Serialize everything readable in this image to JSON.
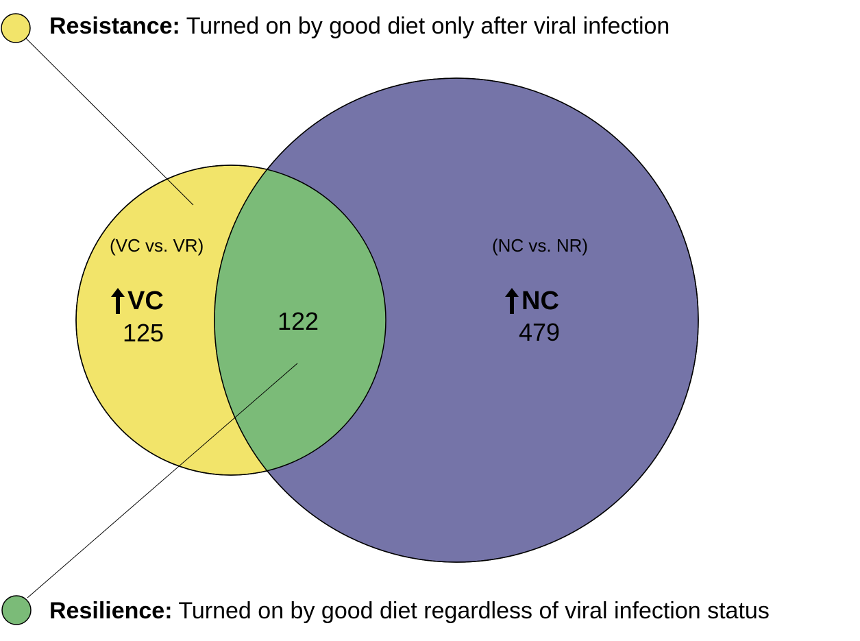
{
  "legend": {
    "resistance": {
      "term": "Resistance:",
      "description": "Turned on by good diet only after viral infection",
      "color": "#f2e46a"
    },
    "resilience": {
      "term": "Resilience:",
      "description": "Turned on by good diet regardless of viral infection status",
      "color": "#7bbb78"
    }
  },
  "venn": {
    "left_set": {
      "comparison": "(VC vs. VR)",
      "group": "VC",
      "arrow": "up-arrow-icon",
      "count": "125",
      "color": "#f2e46a"
    },
    "right_set": {
      "comparison": "(NC vs. NR)",
      "group": "NC",
      "arrow": "up-arrow-icon",
      "count": "479",
      "color": "#7574a8"
    },
    "overlap": {
      "count": "122",
      "color": "#7bbb78"
    }
  }
}
